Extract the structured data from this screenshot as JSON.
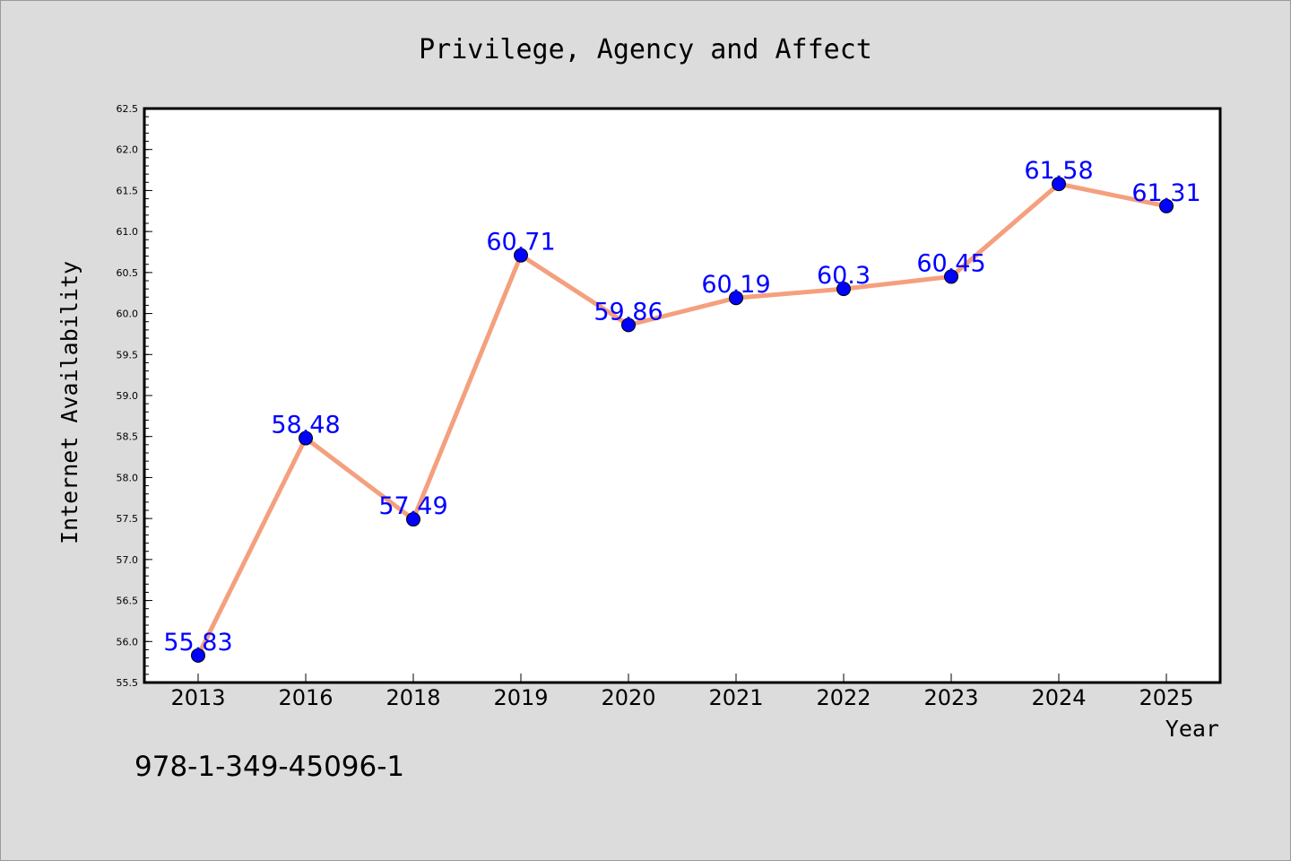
{
  "chart_data": {
    "type": "line",
    "title": "Privilege, Agency and Affect",
    "xlabel": "Year",
    "ylabel": "Internet Availability",
    "categories": [
      "2013",
      "2016",
      "2018",
      "2019",
      "2020",
      "2021",
      "2022",
      "2023",
      "2024",
      "2025"
    ],
    "values": [
      55.83,
      58.48,
      57.49,
      60.71,
      59.86,
      60.19,
      60.3,
      60.45,
      61.58,
      61.31
    ],
    "data_labels": [
      "55.83",
      "58.48",
      "57.49",
      "60.71",
      "59.86",
      "60.19",
      "60.3",
      "60.45",
      "61.58",
      "61.31"
    ],
    "ylim": [
      55.5,
      62.5
    ],
    "yticks": [
      "55.5",
      "56.0",
      "56.5",
      "57.0",
      "57.5",
      "58.0",
      "58.5",
      "59.0",
      "59.5",
      "60.0",
      "60.5",
      "61.0",
      "61.5",
      "62.0",
      "62.5"
    ],
    "grid": false,
    "colors": {
      "line": "#f4a07e",
      "marker": "#0000ff",
      "label": "#0000ff",
      "background": "#dcdcdc",
      "plot_background": "#ffffff"
    }
  },
  "footer": {
    "isbn": "978-1-349-45096-1"
  }
}
